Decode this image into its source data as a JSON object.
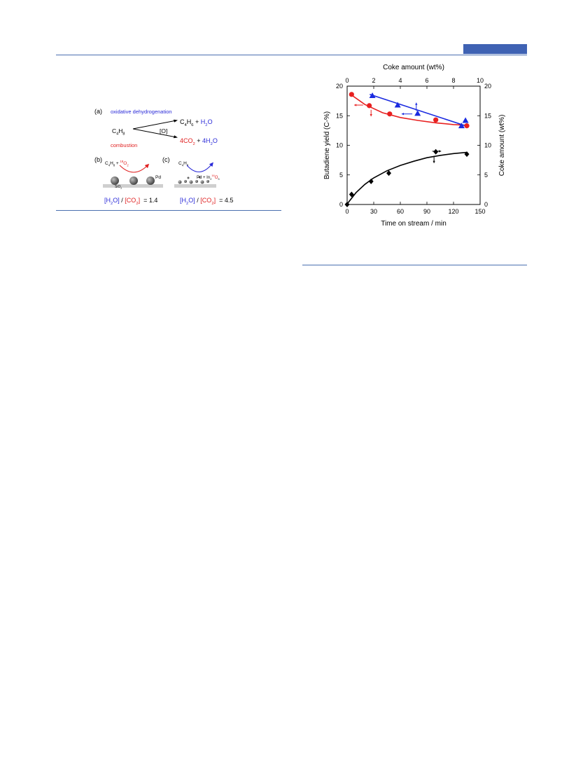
{
  "scheme": {
    "label_a": "(a)",
    "label_b": "(b)",
    "label_c": "(c)",
    "oxidative": "oxidative dehydrogenation",
    "combustion": "combustion",
    "reactant": "C4H8",
    "oxidant": "[O]",
    "product1": "C4H6 + H2O",
    "product2": "4CO2 + 4H2O",
    "b_reactants": "C4H8 + 18O2",
    "b_metal": "Pd",
    "b_support": "SiO2",
    "c_reactant": "C4H8",
    "c_catalyst": "Pd + In2 16O3",
    "ratio_b": "[H2O] / [CO2] = 1.4",
    "ratio_c": "[H2O] / [CO2] = 4.5"
  },
  "chart_data": {
    "type": "scatter",
    "xlabel": "Time on stream / min",
    "x2label": "Coke amount (wt%)",
    "ylabel": "Butadiene yield (C-%)",
    "y2label": "Coke amount (wt%)",
    "xlim": [
      0,
      150
    ],
    "x2lim": [
      0,
      10
    ],
    "ylim": [
      0,
      20
    ],
    "y2lim": [
      0,
      20
    ],
    "x_ticks": [
      0,
      30,
      60,
      90,
      120,
      150
    ],
    "x2_ticks": [
      0,
      2,
      4,
      6,
      8,
      10
    ],
    "y_ticks": [
      0,
      5,
      10,
      15,
      20
    ],
    "y2_ticks": [
      0,
      5,
      10,
      15,
      20
    ],
    "series": [
      {
        "marker": "circle",
        "color": "#e82020",
        "axes": "x-y",
        "x": [
          5,
          25,
          48,
          100,
          135
        ],
        "y": [
          18.6,
          16.7,
          15.3,
          14.3,
          13.3
        ],
        "fit": [
          [
            5,
            18.5
          ],
          [
            20,
            16.9
          ],
          [
            40,
            15.5
          ],
          [
            60,
            14.7
          ],
          [
            80,
            14.2
          ],
          [
            100,
            13.8
          ],
          [
            120,
            13.5
          ],
          [
            135,
            13.4
          ]
        ]
      },
      {
        "marker": "triangle",
        "color": "#1a2ae0",
        "axes": "x2-y",
        "x": [
          1.9,
          3.8,
          5.3,
          8.6,
          8.9
        ],
        "y": [
          18.4,
          16.8,
          15.4,
          13.3,
          14.2
        ],
        "fit": [
          [
            1.7,
            18.6
          ],
          [
            8.9,
            13.3
          ]
        ]
      },
      {
        "marker": "diamond",
        "color": "#000000",
        "axes": "x-y2",
        "x": [
          0,
          5,
          27,
          47,
          100,
          135
        ],
        "y": [
          0,
          1.7,
          3.9,
          5.3,
          8.9,
          8.5
        ],
        "fit": [
          [
            0,
            0.1
          ],
          [
            10,
            2.0
          ],
          [
            20,
            3.4
          ],
          [
            30,
            4.5
          ],
          [
            45,
            5.7
          ],
          [
            60,
            6.6
          ],
          [
            75,
            7.3
          ],
          [
            90,
            7.9
          ],
          [
            105,
            8.3
          ],
          [
            120,
            8.6
          ],
          [
            135,
            8.8
          ]
        ]
      }
    ]
  }
}
